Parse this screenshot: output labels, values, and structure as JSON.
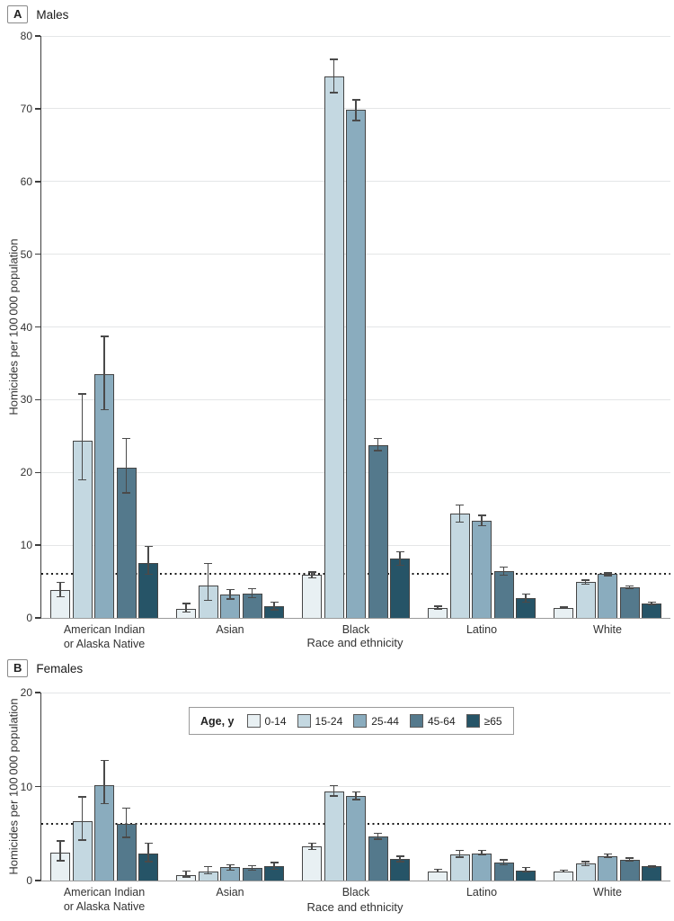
{
  "page": {
    "background": "#ffffff"
  },
  "colors": {
    "bar_border": "#454545",
    "error_bar": "#4a4a4a",
    "grid": "#e4e6e7",
    "y_axis": "#3d3d3d",
    "x_axis": "#9b9b9b",
    "text": "#333333",
    "reference_line": "#1c1c1c",
    "legend_border": "#9a9a9a"
  },
  "age_groups": [
    {
      "label": "0-14",
      "color": "#e8f0f3"
    },
    {
      "label": "15-24",
      "color": "#c4d8e1"
    },
    {
      "label": "25-44",
      "color": "#8aacbe"
    },
    {
      "label": "45-64",
      "color": "#54798c"
    },
    {
      "label": "≥65",
      "color": "#265467"
    }
  ],
  "legend": {
    "title": "Age, y"
  },
  "panelA": {
    "label": "A",
    "title": "Males"
  },
  "panelB": {
    "label": "B",
    "title": "Females"
  },
  "chart_data": [
    {
      "type": "bar",
      "panel": "A",
      "title": "Males",
      "ylabel": "Homicides per 100 000 population",
      "xlabel": "Race and ethnicity",
      "categories": [
        "American Indian\nor Alaska Native",
        "Asian",
        "Black",
        "Latino",
        "White"
      ],
      "ylim": [
        0,
        80
      ],
      "yticks": [
        0,
        10,
        20,
        30,
        40,
        50,
        60,
        70,
        80
      ],
      "reference_line": 6,
      "grid": true,
      "legend_position": "none",
      "error_bars": true,
      "series": [
        {
          "name": "0-14",
          "values": [
            3.8,
            1.2,
            5.9,
            1.4,
            1.4
          ],
          "ci_low": [
            2.9,
            0.8,
            5.5,
            1.2,
            1.3
          ],
          "ci_high": [
            4.9,
            2.0,
            6.3,
            1.6,
            1.5
          ]
        },
        {
          "name": "15-24",
          "values": [
            24.3,
            4.4,
            74.4,
            14.3,
            4.9
          ],
          "ci_low": [
            19.0,
            2.4,
            72.2,
            13.2,
            4.6
          ],
          "ci_high": [
            30.8,
            7.5,
            76.8,
            15.5,
            5.2
          ]
        },
        {
          "name": "25-44",
          "values": [
            33.5,
            3.2,
            69.8,
            13.4,
            6.0
          ],
          "ci_low": [
            28.6,
            2.6,
            68.4,
            12.7,
            5.8
          ],
          "ci_high": [
            38.7,
            3.9,
            71.2,
            14.1,
            6.2
          ]
        },
        {
          "name": "45-64",
          "values": [
            20.7,
            3.4,
            23.8,
            6.4,
            4.2
          ],
          "ci_low": [
            17.2,
            2.8,
            23.0,
            5.9,
            4.0
          ],
          "ci_high": [
            24.7,
            4.0,
            24.7,
            7.0,
            4.4
          ]
        },
        {
          "name": "≥65",
          "values": [
            7.6,
            1.6,
            8.1,
            2.7,
            2.0
          ],
          "ci_low": [
            6.0,
            1.1,
            7.2,
            2.2,
            1.8
          ],
          "ci_high": [
            9.8,
            2.2,
            9.1,
            3.3,
            2.2
          ]
        }
      ]
    },
    {
      "type": "bar",
      "panel": "B",
      "title": "Females",
      "ylabel": "Homicides per 100 000 population",
      "xlabel": "Race and ethnicity",
      "categories": [
        "American Indian\nor Alaska Native",
        "Asian",
        "Black",
        "Latino",
        "White"
      ],
      "ylim": [
        0,
        20
      ],
      "yticks": [
        0,
        10,
        20
      ],
      "reference_line": 6,
      "grid": true,
      "legend_position": "top-center-inset",
      "error_bars": true,
      "series": [
        {
          "name": "0-14",
          "values": [
            3.0,
            0.6,
            3.6,
            1.0,
            1.0
          ],
          "ci_low": [
            2.1,
            0.4,
            3.3,
            0.9,
            0.9
          ],
          "ci_high": [
            4.2,
            1.0,
            4.0,
            1.2,
            1.1
          ]
        },
        {
          "name": "15-24",
          "values": [
            6.3,
            1.0,
            9.5,
            2.8,
            1.8
          ],
          "ci_low": [
            4.3,
            0.7,
            9.0,
            2.5,
            1.6
          ],
          "ci_high": [
            8.9,
            1.5,
            10.1,
            3.2,
            2.0
          ]
        },
        {
          "name": "25-44",
          "values": [
            10.1,
            1.4,
            9.0,
            2.9,
            2.6
          ],
          "ci_low": [
            8.2,
            1.1,
            8.6,
            2.7,
            2.5
          ],
          "ci_high": [
            12.8,
            1.7,
            9.4,
            3.2,
            2.8
          ]
        },
        {
          "name": "45-64",
          "values": [
            6.0,
            1.3,
            4.7,
            1.9,
            2.2
          ],
          "ci_low": [
            4.6,
            1.1,
            4.4,
            1.7,
            2.1
          ],
          "ci_high": [
            7.7,
            1.6,
            5.0,
            2.2,
            2.4
          ]
        },
        {
          "name": "≥65",
          "values": [
            2.9,
            1.5,
            2.3,
            1.1,
            1.5
          ],
          "ci_low": [
            2.0,
            1.2,
            2.0,
            0.9,
            1.4
          ],
          "ci_high": [
            4.0,
            1.9,
            2.6,
            1.4,
            1.6
          ]
        }
      ]
    }
  ]
}
